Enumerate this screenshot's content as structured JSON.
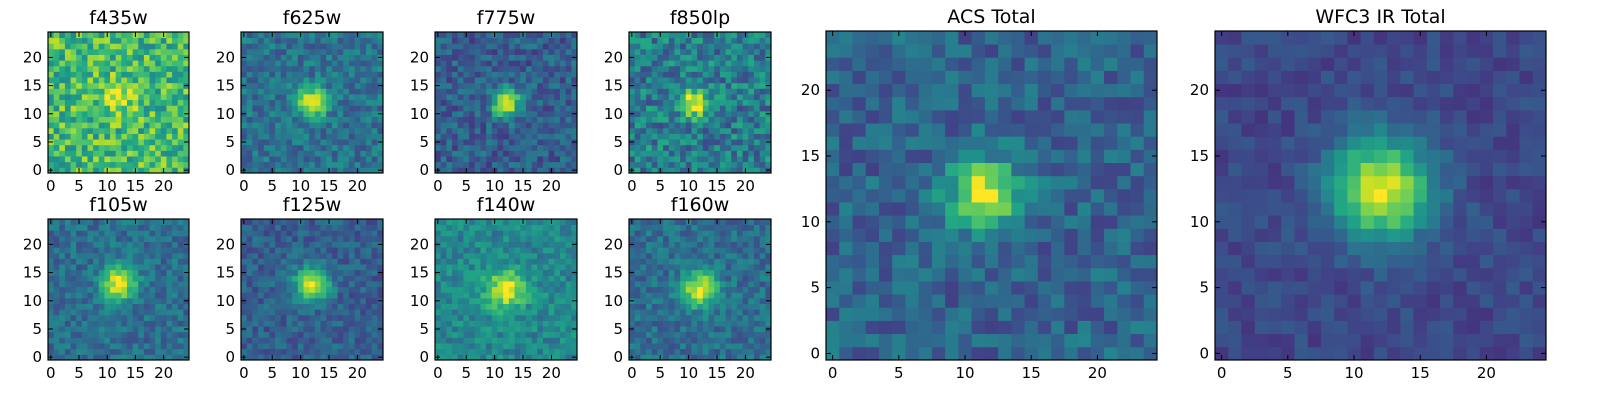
{
  "chart_data": {
    "type": "heatmap",
    "colormap": "viridis",
    "grid_size": 25,
    "panels": [
      {
        "id": "f435w",
        "title": "f435w",
        "x_ticks": [
          "0",
          "5",
          "10",
          "15",
          "20"
        ],
        "y_ticks": [
          "0",
          "5",
          "10",
          "15",
          "20"
        ],
        "center": [
          12,
          13
        ],
        "sigma": 2.0,
        "peak": 0.3,
        "background": 0.68,
        "noise": 0.22
      },
      {
        "id": "f625w",
        "title": "f625w",
        "x_ticks": [
          "0",
          "5",
          "10",
          "15",
          "20"
        ],
        "y_ticks": [
          "0",
          "5",
          "10",
          "15",
          "20"
        ],
        "center": [
          12,
          12
        ],
        "sigma": 1.8,
        "peak": 0.62,
        "background": 0.38,
        "noise": 0.14
      },
      {
        "id": "f775w",
        "title": "f775w",
        "x_ticks": [
          "0",
          "5",
          "10",
          "15",
          "20"
        ],
        "y_ticks": [
          "0",
          "5",
          "10",
          "15",
          "20"
        ],
        "center": [
          12,
          12
        ],
        "sigma": 1.8,
        "peak": 0.66,
        "background": 0.3,
        "noise": 0.14
      },
      {
        "id": "f850lp",
        "title": "f850lp",
        "x_ticks": [
          "0",
          "5",
          "10",
          "15",
          "20"
        ],
        "y_ticks": [
          "0",
          "5",
          "10",
          "15",
          "20"
        ],
        "center": [
          11,
          12
        ],
        "sigma": 1.8,
        "peak": 0.58,
        "background": 0.42,
        "noise": 0.2
      },
      {
        "id": "f105w",
        "title": "f105w",
        "x_ticks": [
          "0",
          "5",
          "10",
          "15",
          "20"
        ],
        "y_ticks": [
          "0",
          "5",
          "10",
          "15",
          "20"
        ],
        "center": [
          12,
          13
        ],
        "sigma": 2.2,
        "peak": 0.62,
        "background": 0.36,
        "noise": 0.12
      },
      {
        "id": "f125w",
        "title": "f125w",
        "x_ticks": [
          "0",
          "5",
          "10",
          "15",
          "20"
        ],
        "y_ticks": [
          "0",
          "5",
          "10",
          "15",
          "20"
        ],
        "center": [
          12,
          13
        ],
        "sigma": 2.2,
        "peak": 0.64,
        "background": 0.3,
        "noise": 0.11
      },
      {
        "id": "f140w",
        "title": "f140w",
        "x_ticks": [
          "0",
          "5",
          "10",
          "15",
          "20"
        ],
        "y_ticks": [
          "0",
          "5",
          "10",
          "15",
          "20"
        ],
        "center": [
          12,
          12
        ],
        "sigma": 2.4,
        "peak": 0.52,
        "background": 0.46,
        "noise": 0.12
      },
      {
        "id": "f160w",
        "title": "f160w",
        "x_ticks": [
          "0",
          "5",
          "10",
          "15",
          "20"
        ],
        "y_ticks": [
          "0",
          "5",
          "10",
          "15",
          "20"
        ],
        "center": [
          12,
          12
        ],
        "sigma": 2.2,
        "peak": 0.62,
        "background": 0.36,
        "noise": 0.12
      },
      {
        "id": "acs-total",
        "title": "ACS Total",
        "x_ticks": [
          "0",
          "5",
          "10",
          "15",
          "20"
        ],
        "y_ticks": [
          "0",
          "5",
          "10",
          "15",
          "20"
        ],
        "center": [
          11.5,
          12
        ],
        "sigma": 1.9,
        "peak": 0.66,
        "background": 0.32,
        "noise": 0.13
      },
      {
        "id": "wfc3-ir-total",
        "title": "WFC3 IR Total",
        "x_ticks": [
          "0",
          "5",
          "10",
          "15",
          "20"
        ],
        "y_ticks": [
          "0",
          "5",
          "10",
          "15",
          "20"
        ],
        "center": [
          12,
          12.5
        ],
        "sigma": 2.7,
        "peak": 0.74,
        "background": 0.22,
        "noise": 0.07
      }
    ]
  }
}
